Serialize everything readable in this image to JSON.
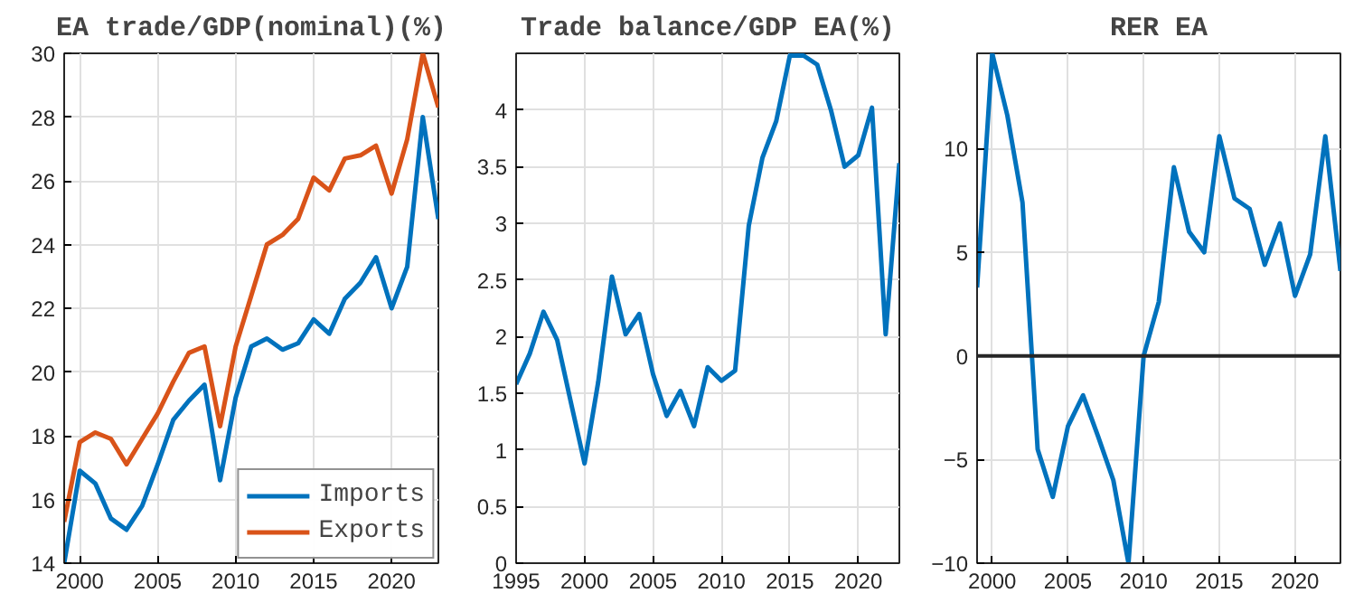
{
  "chart_data": [
    {
      "type": "line",
      "title": "EA trade/GDP(nominal)(%)",
      "x": [
        1999,
        2000,
        2001,
        2002,
        2003,
        2004,
        2005,
        2006,
        2007,
        2008,
        2009,
        2010,
        2011,
        2012,
        2013,
        2014,
        2015,
        2016,
        2017,
        2018,
        2019,
        2020,
        2021,
        2022,
        2023
      ],
      "series": [
        {
          "name": "Imports",
          "color": "#0072bd",
          "values": [
            14.0,
            16.9,
            16.5,
            15.4,
            15.05,
            15.8,
            17.1,
            18.5,
            19.1,
            19.6,
            16.6,
            19.2,
            20.8,
            21.05,
            20.7,
            20.9,
            21.65,
            21.2,
            22.3,
            22.8,
            23.6,
            22.0,
            23.3,
            28.0,
            24.8
          ]
        },
        {
          "name": "Exports",
          "color": "#d95319",
          "values": [
            15.3,
            17.8,
            18.1,
            17.9,
            17.1,
            17.9,
            18.7,
            19.7,
            20.6,
            20.8,
            18.3,
            20.8,
            22.4,
            24.0,
            24.3,
            24.8,
            26.1,
            25.7,
            26.7,
            26.8,
            27.1,
            25.6,
            27.3,
            30.0,
            28.3
          ]
        }
      ],
      "xlim": [
        1999,
        2023
      ],
      "xticks": [
        2000,
        2005,
        2010,
        2015,
        2020
      ],
      "ylim": [
        14,
        30
      ],
      "yticks": [
        14,
        16,
        18,
        20,
        22,
        24,
        26,
        28,
        30
      ],
      "grid": true,
      "legend": "bottom right"
    },
    {
      "type": "line",
      "title": "Trade balance/GDP EA(%)",
      "x": [
        1995,
        1996,
        1997,
        1998,
        1999,
        2000,
        2001,
        2002,
        2003,
        2004,
        2005,
        2006,
        2007,
        2008,
        2009,
        2010,
        2011,
        2012,
        2013,
        2014,
        2015,
        2016,
        2017,
        2018,
        2019,
        2020,
        2021,
        2022,
        2023
      ],
      "series": [
        {
          "color": "#0072bd",
          "values": [
            1.58,
            1.85,
            2.22,
            1.97,
            1.42,
            0.88,
            1.6,
            2.53,
            2.02,
            2.2,
            1.67,
            1.3,
            1.52,
            1.21,
            1.73,
            1.61,
            1.7,
            2.98,
            3.58,
            3.9,
            4.48,
            4.48,
            4.4,
            4.0,
            3.5,
            3.6,
            4.02,
            2.02,
            3.53
          ]
        }
      ],
      "xlim": [
        1995,
        2023
      ],
      "xticks": [
        1995,
        2000,
        2005,
        2010,
        2015,
        2020
      ],
      "ylim": [
        0,
        4.5
      ],
      "yticks": [
        0,
        0.5,
        1,
        1.5,
        2,
        2.5,
        3,
        3.5,
        4
      ],
      "grid": true
    },
    {
      "type": "line",
      "title": "RER EA",
      "x": [
        1999,
        2000,
        2001,
        2002,
        2003,
        2004,
        2005,
        2006,
        2007,
        2008,
        2009,
        2010,
        2011,
        2012,
        2013,
        2014,
        2015,
        2016,
        2017,
        2018,
        2019,
        2020,
        2021,
        2022,
        2023
      ],
      "series": [
        {
          "color": "#0072bd",
          "values": [
            3.3,
            14.6,
            11.6,
            7.4,
            -4.5,
            -6.8,
            -3.4,
            -1.9,
            -3.9,
            -6.0,
            -10.0,
            0.0,
            2.6,
            9.1,
            6.0,
            5.0,
            10.6,
            7.6,
            7.1,
            4.4,
            6.4,
            2.9,
            4.9,
            10.6,
            4.1
          ]
        }
      ],
      "xlim": [
        1999,
        2023
      ],
      "xticks": [
        2000,
        2005,
        2010,
        2015,
        2020
      ],
      "ylim": [
        -10,
        14.6
      ],
      "yticks": [
        -10,
        -5,
        0,
        5,
        10
      ],
      "grid": true,
      "ref_lines": [
        {
          "axis": "y",
          "value": 0,
          "color": "#262626"
        }
      ]
    }
  ]
}
